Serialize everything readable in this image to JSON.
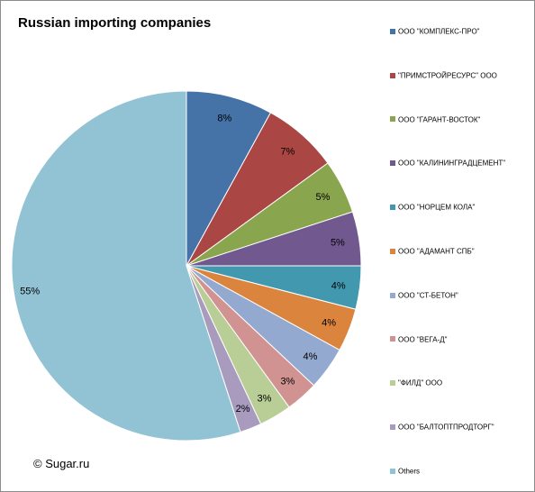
{
  "chart_data": {
    "type": "pie",
    "title": "Russian importing companies",
    "start_angle_deg": 0,
    "direction": "clockwise",
    "legend_position": "right",
    "slices": [
      {
        "name": "ООО \"КОМПЛЕКС-ПРО\"",
        "value": 8,
        "label": "8%",
        "color": "#4572a7"
      },
      {
        "name": "\"ПРИМСТРОЙРЕСУРС\" ООО",
        "value": 7,
        "label": "7%",
        "color": "#aa4643"
      },
      {
        "name": "ООО \"ГАРАНТ-ВОСТОК\"",
        "value": 5,
        "label": "5%",
        "color": "#89a54e"
      },
      {
        "name": "ООО \"КАЛИНИНГРАДЦЕМЕНТ\"",
        "value": 5,
        "label": "5%",
        "color": "#71588f"
      },
      {
        "name": "ООО \"НОРЦЕМ КОЛА\"",
        "value": 4,
        "label": "4%",
        "color": "#4198af"
      },
      {
        "name": "ООО \"АДАМАНТ СПБ\"",
        "value": 4,
        "label": "4%",
        "color": "#db843d"
      },
      {
        "name": "ООО \"СТ-БЕТОН\"",
        "value": 4,
        "label": "4%",
        "color": "#93a9cf"
      },
      {
        "name": "ООО \"ВЕГА-Д\"",
        "value": 3,
        "label": "3%",
        "color": "#d19392"
      },
      {
        "name": "\"ФИЛД\" ООО",
        "value": 3,
        "label": "3%",
        "color": "#b9cd96"
      },
      {
        "name": "ООО \"БАЛТОПТПРОДТОРГ\"",
        "value": 2,
        "label": "2%",
        "color": "#a99bbd"
      },
      {
        "name": "Others",
        "value": 55,
        "label": "55%",
        "color": "#92c3d4"
      }
    ]
  },
  "copyright": "© Sugar.ru"
}
